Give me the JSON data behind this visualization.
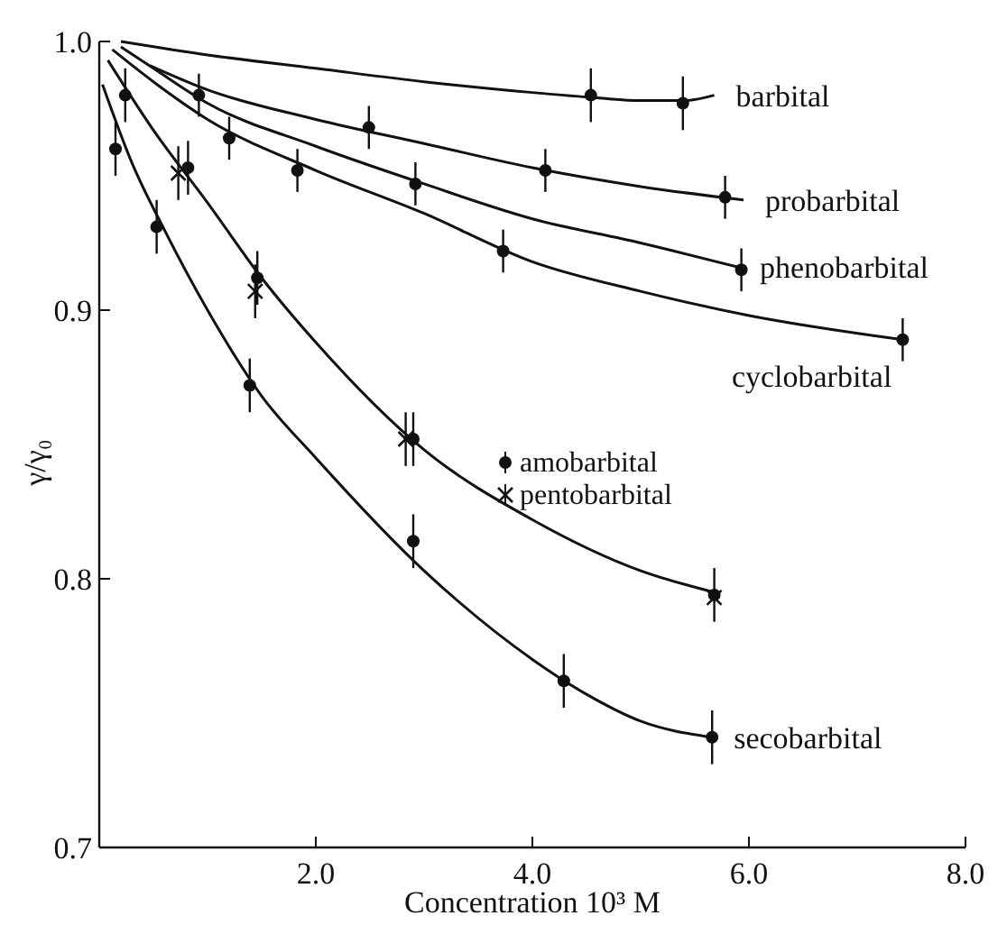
{
  "chart_data": {
    "type": "scatter",
    "xlabel": "Concentration 10³ M",
    "ylabel": "γ/γ₀",
    "xlim": [
      0,
      8
    ],
    "ylim": [
      0.7,
      1.0
    ],
    "xticks": [
      {
        "value": 2,
        "label": "2.0"
      },
      {
        "value": 4,
        "label": "4.0"
      },
      {
        "value": 6,
        "label": "6.0"
      },
      {
        "value": 8,
        "label": "8.0"
      }
    ],
    "yticks": [
      {
        "value": 0.7,
        "label": "0.7"
      },
      {
        "value": 0.8,
        "label": "0.8"
      },
      {
        "value": 0.9,
        "label": "0.9"
      },
      {
        "value": 1.0,
        "label": "1.0"
      }
    ],
    "legend": "right",
    "marker": "circle",
    "series": [
      {
        "type": "line",
        "name": "barbital",
        "color": "#111111",
        "marker": "none",
        "x": [
          0.2,
          1,
          2,
          3,
          4,
          4.6,
          5,
          5.4,
          5.68
        ],
        "values": [
          1.0,
          0.995,
          0.99,
          0.985,
          0.981,
          0.979,
          0.978,
          0.978,
          0.98
        ]
      },
      {
        "type": "line",
        "name": "probarbital",
        "color": "#111111",
        "marker": "none",
        "x": [
          0.47,
          1,
          2,
          3,
          4,
          5,
          5.95
        ],
        "values": [
          0.991,
          0.982,
          0.971,
          0.962,
          0.953,
          0.946,
          0.941
        ]
      },
      {
        "type": "line",
        "name": "phenobarbital",
        "color": "#111111",
        "marker": "none",
        "x": [
          0.2,
          0.5,
          1,
          2,
          3,
          4,
          5,
          5.9
        ],
        "values": [
          0.998,
          0.99,
          0.977,
          0.961,
          0.947,
          0.934,
          0.925,
          0.916
        ]
      },
      {
        "type": "line",
        "name": "cyclobarbital",
        "color": "#111111",
        "marker": "none",
        "x": [
          0.12,
          0.5,
          1,
          2,
          3,
          4,
          5,
          6,
          7.42
        ],
        "values": [
          0.997,
          0.985,
          0.971,
          0.952,
          0.936,
          0.918,
          0.907,
          0.898,
          0.889
        ]
      },
      {
        "type": "line",
        "color": "#111111",
        "marker": "none",
        "x": [
          0.08,
          0.5,
          1,
          1.5,
          2,
          3,
          4,
          5,
          5.68
        ],
        "values": [
          0.993,
          0.967,
          0.94,
          0.912,
          0.888,
          0.848,
          0.822,
          0.803,
          0.795
        ]
      },
      {
        "type": "line",
        "name": "secobarbital",
        "color": "#111111",
        "marker": "none",
        "x": [
          0.03,
          0.3,
          0.6,
          1,
          1.5,
          2,
          3,
          4,
          4.5,
          5,
          5.66
        ],
        "values": [
          0.984,
          0.955,
          0.93,
          0.9,
          0.868,
          0.845,
          0.803,
          0.77,
          0.757,
          0.747,
          0.741
        ]
      },
      {
        "color": "#111111",
        "x": [
          4.54,
          5.39
        ],
        "values": [
          0.98,
          0.977
        ],
        "errors": [
          0.01,
          0.01
        ]
      },
      {
        "color": "#111111",
        "x": [
          0.92,
          2.49,
          4.12,
          5.78
        ],
        "values": [
          0.98,
          0.968,
          0.952,
          0.942
        ],
        "errors": [
          0.008,
          0.008,
          0.008,
          0.008
        ]
      },
      {
        "color": "#111111",
        "x": [
          1.2,
          2.92,
          5.93
        ],
        "values": [
          0.964,
          0.947,
          0.915
        ],
        "errors": [
          0.008,
          0.008,
          0.008
        ]
      },
      {
        "color": "#111111",
        "x": [
          1.83,
          3.73,
          7.42
        ],
        "values": [
          0.952,
          0.922,
          0.889
        ],
        "errors": [
          0.008,
          0.008,
          0.008
        ]
      },
      {
        "name": "amobarbital",
        "color": "#111111",
        "marker": "circle",
        "x": [
          0.24,
          0.82,
          1.46,
          2.9,
          5.68
        ],
        "values": [
          0.98,
          0.953,
          0.912,
          0.852,
          0.794
        ],
        "errors": [
          0.01,
          0.01,
          0.01,
          0.01,
          0.01
        ]
      },
      {
        "name": "pentobarbital",
        "color": "#111111",
        "marker": "cross",
        "x": [
          0.73,
          1.44,
          2.83,
          5.68
        ],
        "values": [
          0.951,
          0.907,
          0.852,
          0.793
        ],
        "errors": [
          0.01,
          0.01,
          0.01,
          null
        ]
      },
      {
        "color": "#111111",
        "x": [
          0.15,
          0.53,
          1.39,
          2.9,
          4.29,
          5.66
        ],
        "values": [
          0.96,
          0.931,
          0.872,
          0.814,
          0.762,
          0.741
        ],
        "errors": [
          0.01,
          0.01,
          0.01,
          0.01,
          0.01,
          0.01
        ]
      }
    ]
  }
}
